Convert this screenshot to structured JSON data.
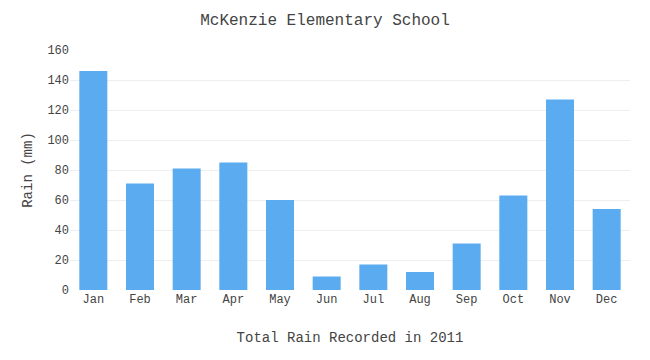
{
  "chart_data": {
    "type": "bar",
    "title": "McKenzie Elementary School",
    "xlabel": "Total Rain Recorded in 2011",
    "ylabel": "Rain (mm)",
    "categories": [
      "Jan",
      "Feb",
      "Mar",
      "Apr",
      "May",
      "Jun",
      "Jul",
      "Aug",
      "Sep",
      "Oct",
      "Nov",
      "Dec"
    ],
    "values": [
      146,
      71,
      81,
      85,
      60,
      9,
      17,
      12,
      31,
      63,
      127,
      54
    ],
    "color": "#5aabf0",
    "ylim": [
      0,
      160
    ],
    "yticks": [
      0,
      20,
      40,
      60,
      80,
      100,
      120,
      140,
      160
    ],
    "grid": true
  }
}
